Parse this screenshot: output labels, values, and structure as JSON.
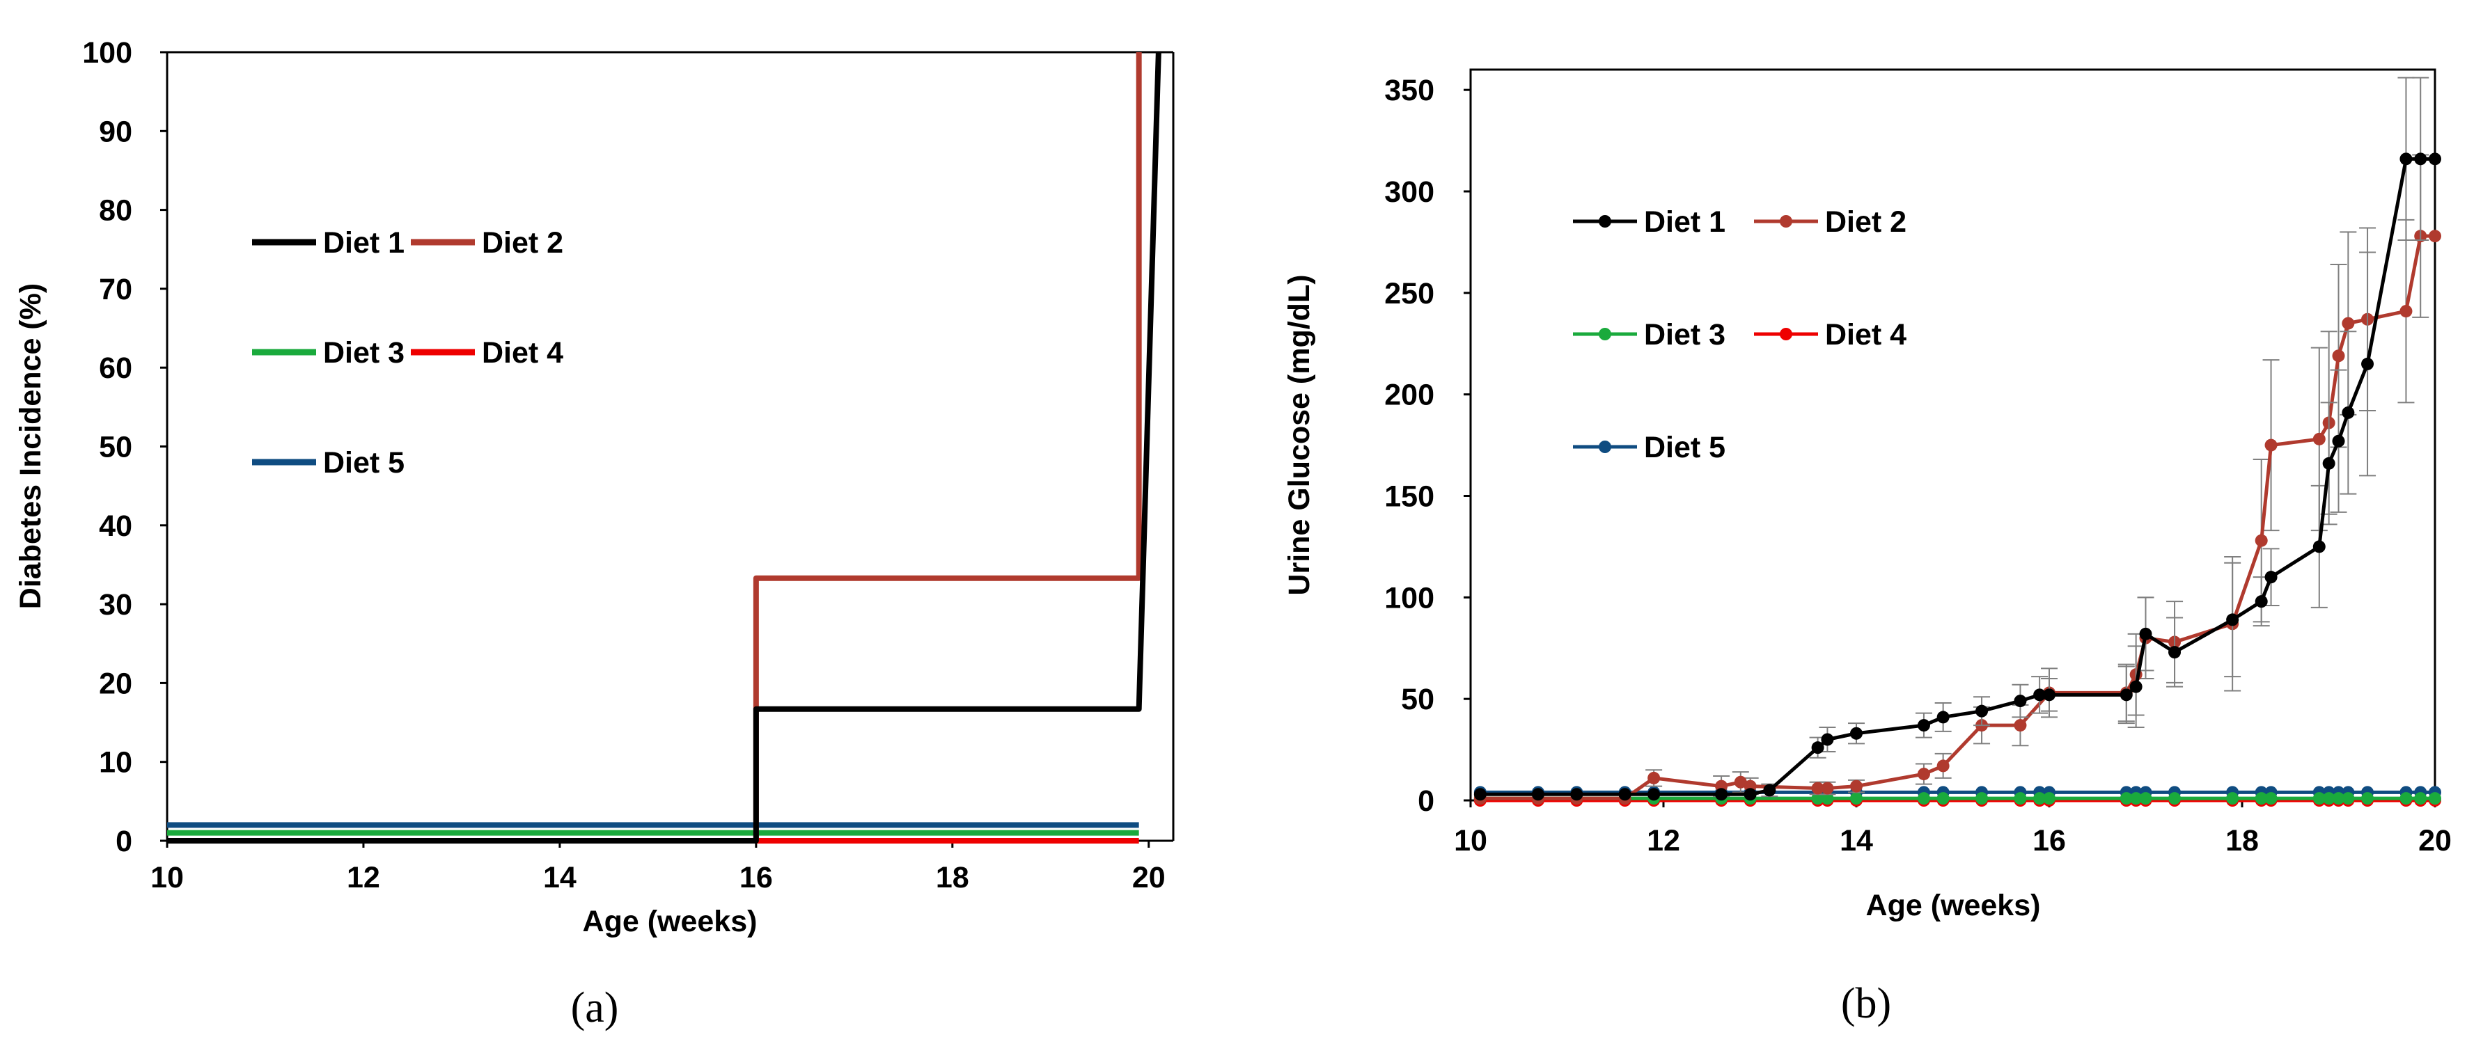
{
  "chart_data": [
    {
      "type": "line",
      "panel_label": "(a)",
      "xlabel": "Age (weeks)",
      "ylabel": "Diabetes Incidence (%)",
      "xlim": [
        10,
        20.25
      ],
      "ylim": [
        0,
        100
      ],
      "xticks": [
        "10",
        "12",
        "14",
        "16",
        "18",
        "20"
      ],
      "yticks": [
        "0",
        "10",
        "20",
        "30",
        "40",
        "50",
        "60",
        "70",
        "80",
        "90",
        "100"
      ],
      "grid": false,
      "legend": {
        "placement": "upper-left",
        "columns": 2
      },
      "series": [
        {
          "name": "Diet 1",
          "color": "#000000",
          "x": [
            10,
            16,
            16,
            19.9,
            19.9,
            20.1
          ],
          "y": [
            0,
            0,
            16.7,
            16.7,
            16.7,
            100
          ]
        },
        {
          "name": "Diet 2",
          "color": "#b03a2e",
          "x": [
            10,
            16,
            16,
            19.9,
            19.9
          ],
          "y": [
            0,
            0,
            33.3,
            33.3,
            100
          ]
        },
        {
          "name": "Diet 3",
          "color": "#1aaa3c",
          "x": [
            10,
            19.9
          ],
          "y": [
            1,
            1
          ]
        },
        {
          "name": "Diet 4",
          "color": "#ee0000",
          "x": [
            10,
            19.9
          ],
          "y": [
            0,
            0
          ]
        },
        {
          "name": "Diet 5",
          "color": "#0f4c81",
          "x": [
            10,
            19.9
          ],
          "y": [
            2,
            2
          ]
        }
      ]
    },
    {
      "type": "line",
      "panel_label": "(b)",
      "xlabel": "Age (weeks)",
      "ylabel": "Urine Glucose (mg/dL)",
      "xlim": [
        10,
        20
      ],
      "ylim": [
        0,
        360
      ],
      "xticks": [
        "10",
        "12",
        "14",
        "16",
        "18",
        "20"
      ],
      "yticks": [
        "0",
        "50",
        "100",
        "150",
        "200",
        "250",
        "300",
        "350"
      ],
      "grid": false,
      "legend": {
        "placement": "upper-left",
        "columns": 2
      },
      "series": [
        {
          "name": "Diet 1",
          "color": "#000000",
          "markers": true,
          "x": [
            10.1,
            10.7,
            11.1,
            11.6,
            11.9,
            12.6,
            12.9,
            13.1,
            13.6,
            13.7,
            14.0,
            14.7,
            14.9,
            15.3,
            15.7,
            15.9,
            16.0,
            16.8,
            16.9,
            17.0,
            17.3,
            17.9,
            18.2,
            18.3,
            18.8,
            18.9,
            19.0,
            19.1,
            19.3,
            19.7,
            19.85,
            20.0
          ],
          "y": [
            3,
            3,
            3,
            3,
            3,
            3,
            3,
            5,
            26,
            30,
            33,
            37,
            41,
            44,
            49,
            52,
            52,
            52,
            56,
            82,
            73,
            89,
            98,
            110,
            125,
            166,
            177,
            191,
            215,
            316,
            316,
            316
          ],
          "err": [
            0,
            0,
            0,
            0,
            0,
            0,
            0,
            3,
            5,
            6,
            5,
            6,
            7,
            7,
            8,
            9,
            8,
            14,
            20,
            18,
            17,
            28,
            12,
            14,
            30,
            30,
            35,
            40,
            55,
            40,
            40,
            0
          ]
        },
        {
          "name": "Diet 2",
          "color": "#b03a2e",
          "markers": true,
          "x": [
            10.1,
            10.7,
            11.1,
            11.6,
            11.9,
            12.6,
            12.8,
            12.9,
            13.6,
            13.7,
            14.0,
            14.7,
            14.9,
            15.3,
            15.7,
            16.0,
            16.8,
            16.9,
            17.0,
            17.3,
            17.9,
            18.2,
            18.3,
            18.8,
            18.9,
            19.0,
            19.1,
            19.3,
            19.7,
            19.85,
            20.0
          ],
          "y": [
            1,
            1,
            1,
            1,
            11,
            7,
            9,
            7,
            6,
            6,
            7,
            13,
            17,
            37,
            37,
            53,
            53,
            62,
            80,
            78,
            87,
            128,
            175,
            178,
            186,
            219,
            235,
            237,
            241,
            278,
            278
          ],
          "err": [
            0,
            0,
            0,
            0,
            4,
            5,
            5,
            4,
            3,
            3,
            3,
            5,
            6,
            9,
            10,
            12,
            14,
            20,
            20,
            20,
            33,
            40,
            42,
            45,
            45,
            45,
            45,
            45,
            45,
            40,
            0
          ]
        },
        {
          "name": "Diet 3",
          "color": "#1aaa3c",
          "markers": true,
          "x": [
            10.1,
            10.7,
            11.1,
            11.6,
            11.9,
            12.6,
            12.9,
            13.6,
            13.7,
            14.0,
            14.7,
            14.9,
            15.3,
            15.7,
            15.9,
            16.0,
            16.8,
            16.9,
            17.0,
            17.3,
            17.9,
            18.2,
            18.3,
            18.8,
            18.9,
            19.0,
            19.1,
            19.3,
            19.7,
            19.85,
            20.0
          ],
          "y": [
            1,
            1,
            1,
            1,
            1,
            1,
            1,
            1,
            1,
            1,
            1,
            1,
            1,
            1,
            1,
            1,
            1,
            1,
            1,
            1,
            1,
            1,
            1,
            1,
            1,
            1,
            1,
            1,
            1,
            1,
            1
          ]
        },
        {
          "name": "Diet 4",
          "color": "#ee0000",
          "markers": true,
          "x": [
            10.1,
            10.7,
            11.1,
            11.6,
            11.9,
            12.6,
            12.9,
            13.6,
            13.7,
            14.0,
            14.7,
            14.9,
            15.3,
            15.7,
            15.9,
            16.0,
            16.8,
            16.9,
            17.0,
            17.3,
            17.9,
            18.2,
            18.3,
            18.8,
            18.9,
            19.0,
            19.1,
            19.3,
            19.7,
            19.85,
            20.0
          ],
          "y": [
            0,
            0,
            0,
            0,
            0,
            0,
            0,
            0,
            0,
            0,
            0,
            0,
            0,
            0,
            0,
            0,
            0,
            0,
            0,
            0,
            0,
            0,
            0,
            0,
            0,
            0,
            0,
            0,
            0,
            0,
            0
          ]
        },
        {
          "name": "Diet 5",
          "color": "#0f4c81",
          "markers": true,
          "x": [
            10.1,
            10.7,
            11.1,
            11.6,
            11.9,
            12.6,
            12.9,
            13.6,
            13.7,
            14.0,
            14.7,
            14.9,
            15.3,
            15.7,
            15.9,
            16.0,
            16.8,
            16.9,
            17.0,
            17.3,
            17.9,
            18.2,
            18.3,
            18.8,
            18.9,
            19.0,
            19.1,
            19.3,
            19.7,
            19.85,
            20.0
          ],
          "y": [
            4,
            4,
            4,
            4,
            4,
            4,
            4,
            4,
            4,
            4,
            4,
            4,
            4,
            4,
            4,
            4,
            4,
            4,
            4,
            4,
            4,
            4,
            4,
            4,
            4,
            4,
            4,
            4,
            4,
            4,
            4
          ]
        }
      ]
    }
  ]
}
